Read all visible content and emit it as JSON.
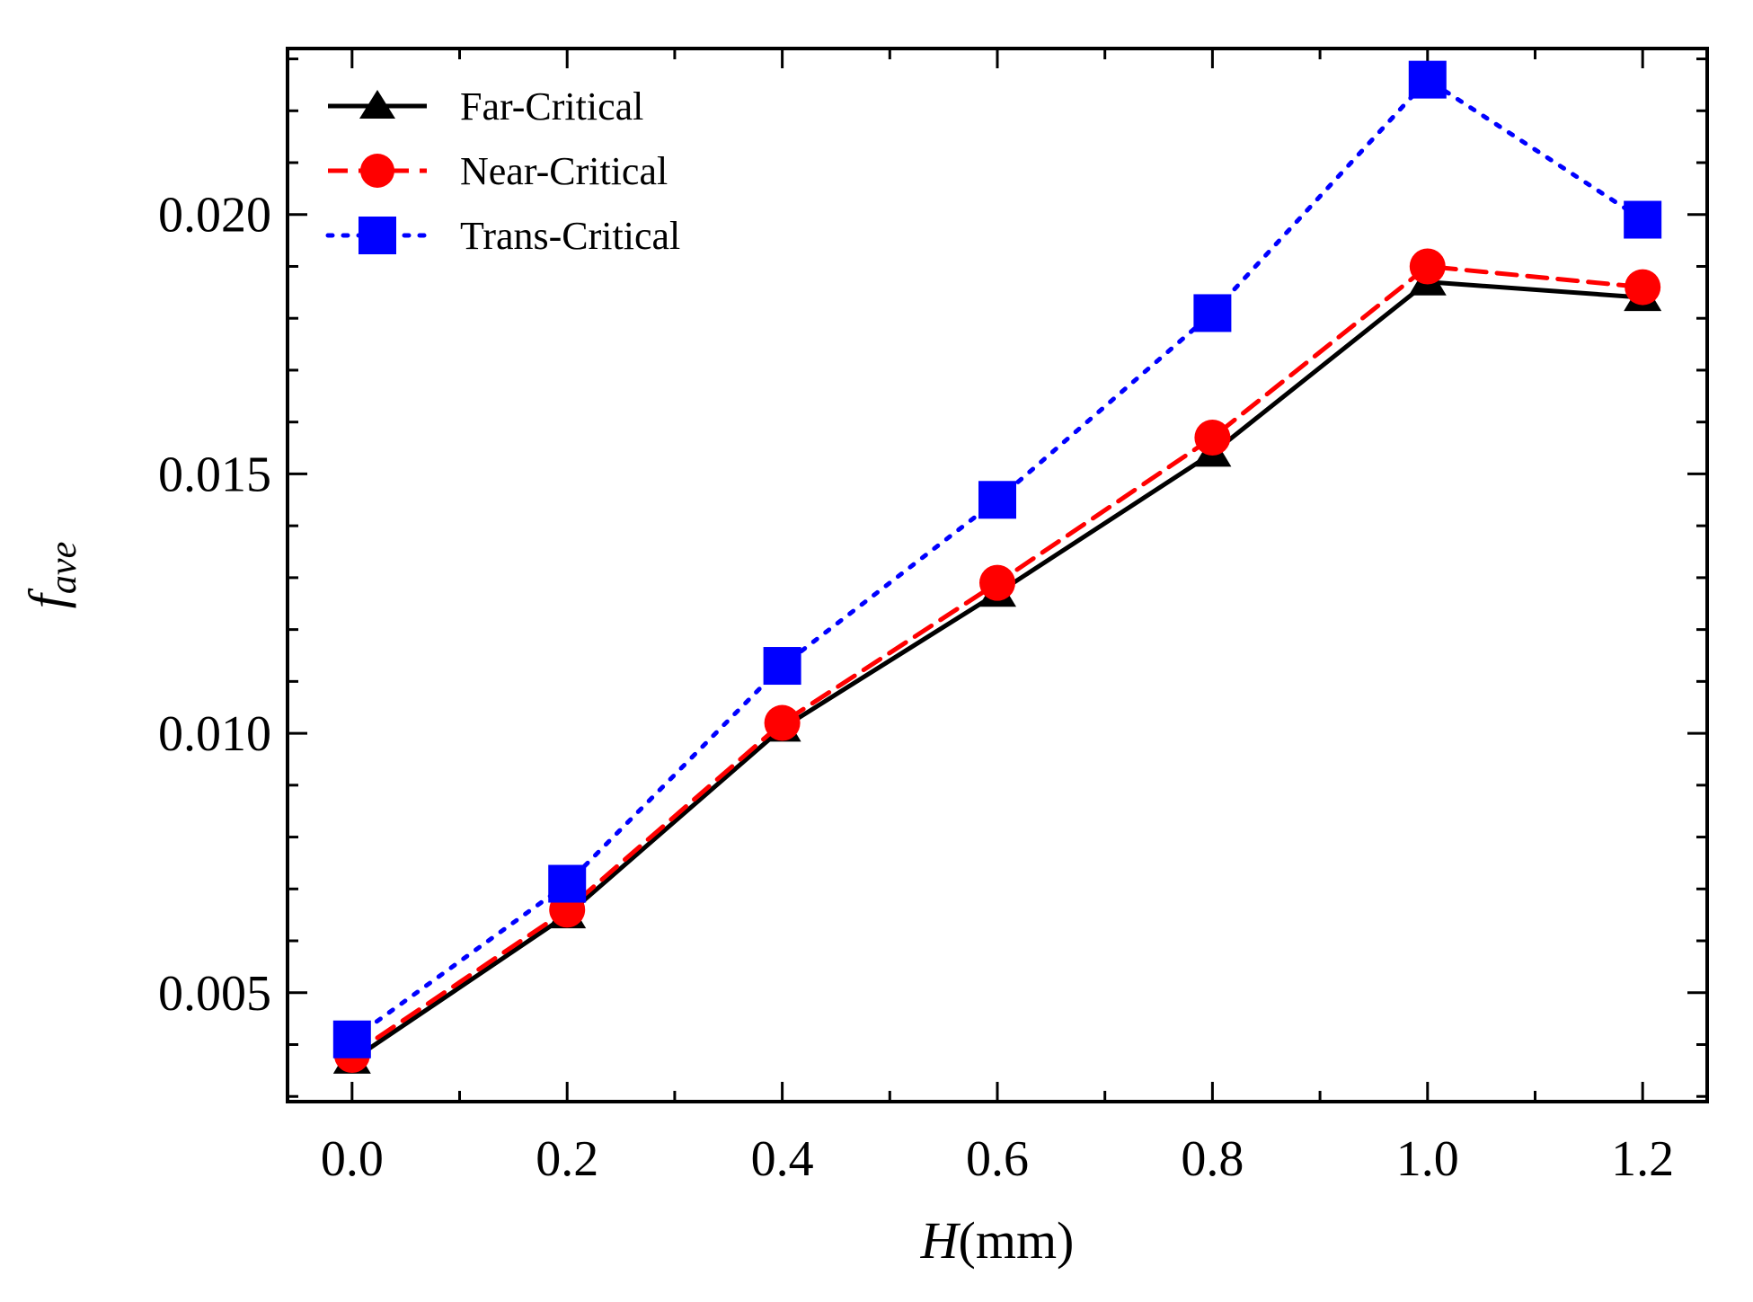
{
  "chart_data": {
    "type": "line",
    "x": [
      0.0,
      0.2,
      0.4,
      0.6,
      0.8,
      1.0,
      1.2
    ],
    "x_tick_labels": [
      "0.0",
      "0.2",
      "0.4",
      "0.6",
      "0.8",
      "1.0",
      "1.2"
    ],
    "y_tick_values": [
      0.005,
      0.01,
      0.015,
      0.02
    ],
    "y_tick_labels": [
      "0.005",
      "0.010",
      "0.015",
      "0.020"
    ],
    "xlim": [
      -0.06,
      1.26
    ],
    "ylim": [
      0.0029,
      0.0232
    ],
    "xlabel_italic": "H",
    "xlabel_unit": "(mm)",
    "ylabel_main": "f",
    "ylabel_sub": "ave",
    "grid": false,
    "legend_position": "top-left",
    "series": [
      {
        "name": "Far-Critical",
        "color": "#000000",
        "line_style": "solid",
        "marker": "triangle",
        "values": [
          0.0037,
          0.0065,
          0.0101,
          0.0127,
          0.0154,
          0.0187,
          0.0184
        ]
      },
      {
        "name": "Near-Critical",
        "color": "#ff0000",
        "line_style": "dashed",
        "marker": "circle",
        "values": [
          0.0038,
          0.0066,
          0.0102,
          0.0129,
          0.0157,
          0.019,
          0.0186
        ]
      },
      {
        "name": "Trans-Critical",
        "color": "#0000ff",
        "line_style": "dotted",
        "marker": "square",
        "values": [
          0.0041,
          0.0071,
          0.0113,
          0.0145,
          0.0181,
          0.0226,
          0.0199
        ]
      }
    ]
  }
}
